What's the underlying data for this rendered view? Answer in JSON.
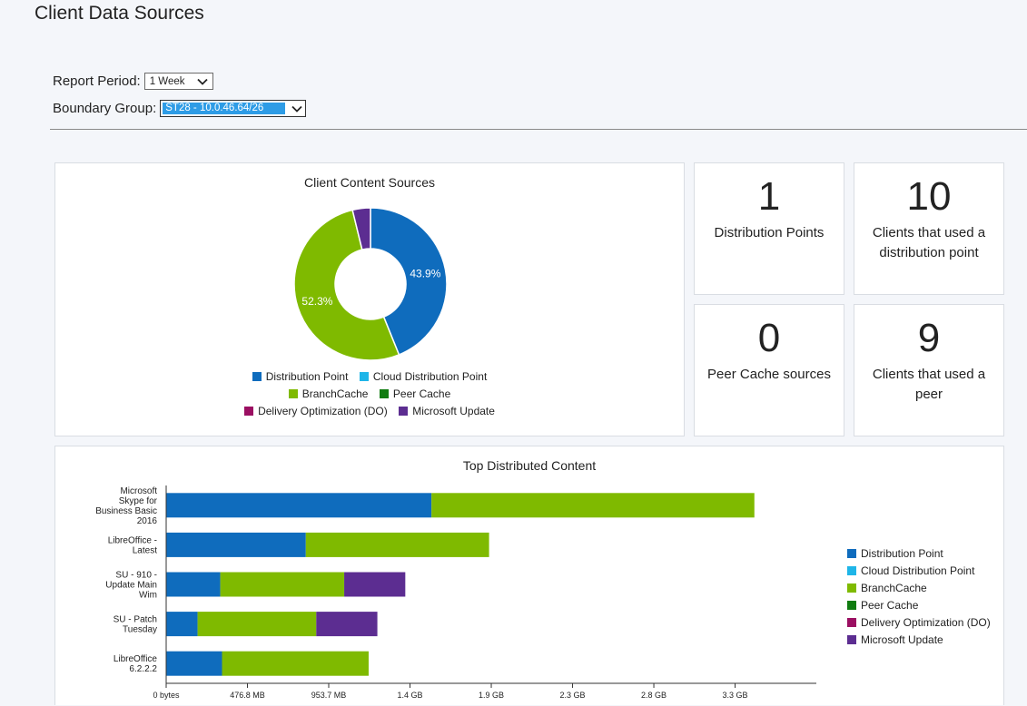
{
  "page": {
    "title": "Client Data Sources"
  },
  "filters": {
    "report_period": {
      "label": "Report Period:",
      "value": "1 Week"
    },
    "boundary_group": {
      "label": "Boundary Group:",
      "value": "ST28 - 10.0.46.64/26"
    }
  },
  "colors": {
    "distribution_point": "#0f6cbd",
    "cloud_distribution_point": "#1fb5e8",
    "branchcache": "#7fba00",
    "peer_cache": "#107c10",
    "delivery_optimization": "#9b0f62",
    "microsoft_update": "#5c2d91"
  },
  "legend": [
    {
      "key": "distribution_point",
      "label": "Distribution Point"
    },
    {
      "key": "cloud_distribution_point",
      "label": "Cloud Distribution Point"
    },
    {
      "key": "branchcache",
      "label": "BranchCache"
    },
    {
      "key": "peer_cache",
      "label": "Peer Cache"
    },
    {
      "key": "delivery_optimization",
      "label": "Delivery Optimization (DO)"
    },
    {
      "key": "microsoft_update",
      "label": "Microsoft Update"
    }
  ],
  "tiles": [
    {
      "value": "1",
      "label": "Distribution Points"
    },
    {
      "value": "10",
      "label": "Clients that used a distribution point"
    },
    {
      "value": "0",
      "label": "Peer Cache sources"
    },
    {
      "value": "9",
      "label": "Clients that used a peer"
    }
  ],
  "chart_data": [
    {
      "type": "pie",
      "title": "Client Content Sources",
      "donut": true,
      "slices": [
        {
          "key": "distribution_point",
          "value": 43.9,
          "label": "43.9%"
        },
        {
          "key": "branchcache",
          "value": 52.3,
          "label": "52.3%"
        },
        {
          "key": "microsoft_update",
          "value": 3.8,
          "label": ""
        }
      ],
      "legend_position": "bottom"
    },
    {
      "type": "bar",
      "orientation": "horizontal",
      "stacked": true,
      "title": "Top Distributed Content",
      "unit": "GB",
      "categories": [
        "Microsoft Skype for Business Basic 2016",
        "LibreOffice - Latest",
        "SU - 910 - Update Main Wim",
        "SU - Patch Tuesday",
        "LibreOffice 6.2.2.2"
      ],
      "series": [
        {
          "key": "distribution_point",
          "name": "Distribution Point",
          "values": [
            1.52,
            0.8,
            0.31,
            0.18,
            0.32
          ]
        },
        {
          "key": "branchcache",
          "name": "BranchCache",
          "values": [
            1.85,
            1.05,
            0.71,
            0.68,
            0.84
          ]
        },
        {
          "key": "microsoft_update",
          "name": "Microsoft Update",
          "values": [
            0,
            0,
            0.35,
            0.35,
            0
          ]
        }
      ],
      "x_ticks": [
        "0 bytes",
        "476.8 MB",
        "953.7 MB",
        "1.4 GB",
        "1.9 GB",
        "2.3 GB",
        "2.8 GB",
        "3.3 GB"
      ],
      "x_tick_values": [
        0,
        0.4657,
        0.9313,
        1.397,
        1.8626,
        2.3283,
        2.794,
        3.2596
      ],
      "xlim": [
        0,
        3.725
      ],
      "legend_position": "right"
    }
  ]
}
